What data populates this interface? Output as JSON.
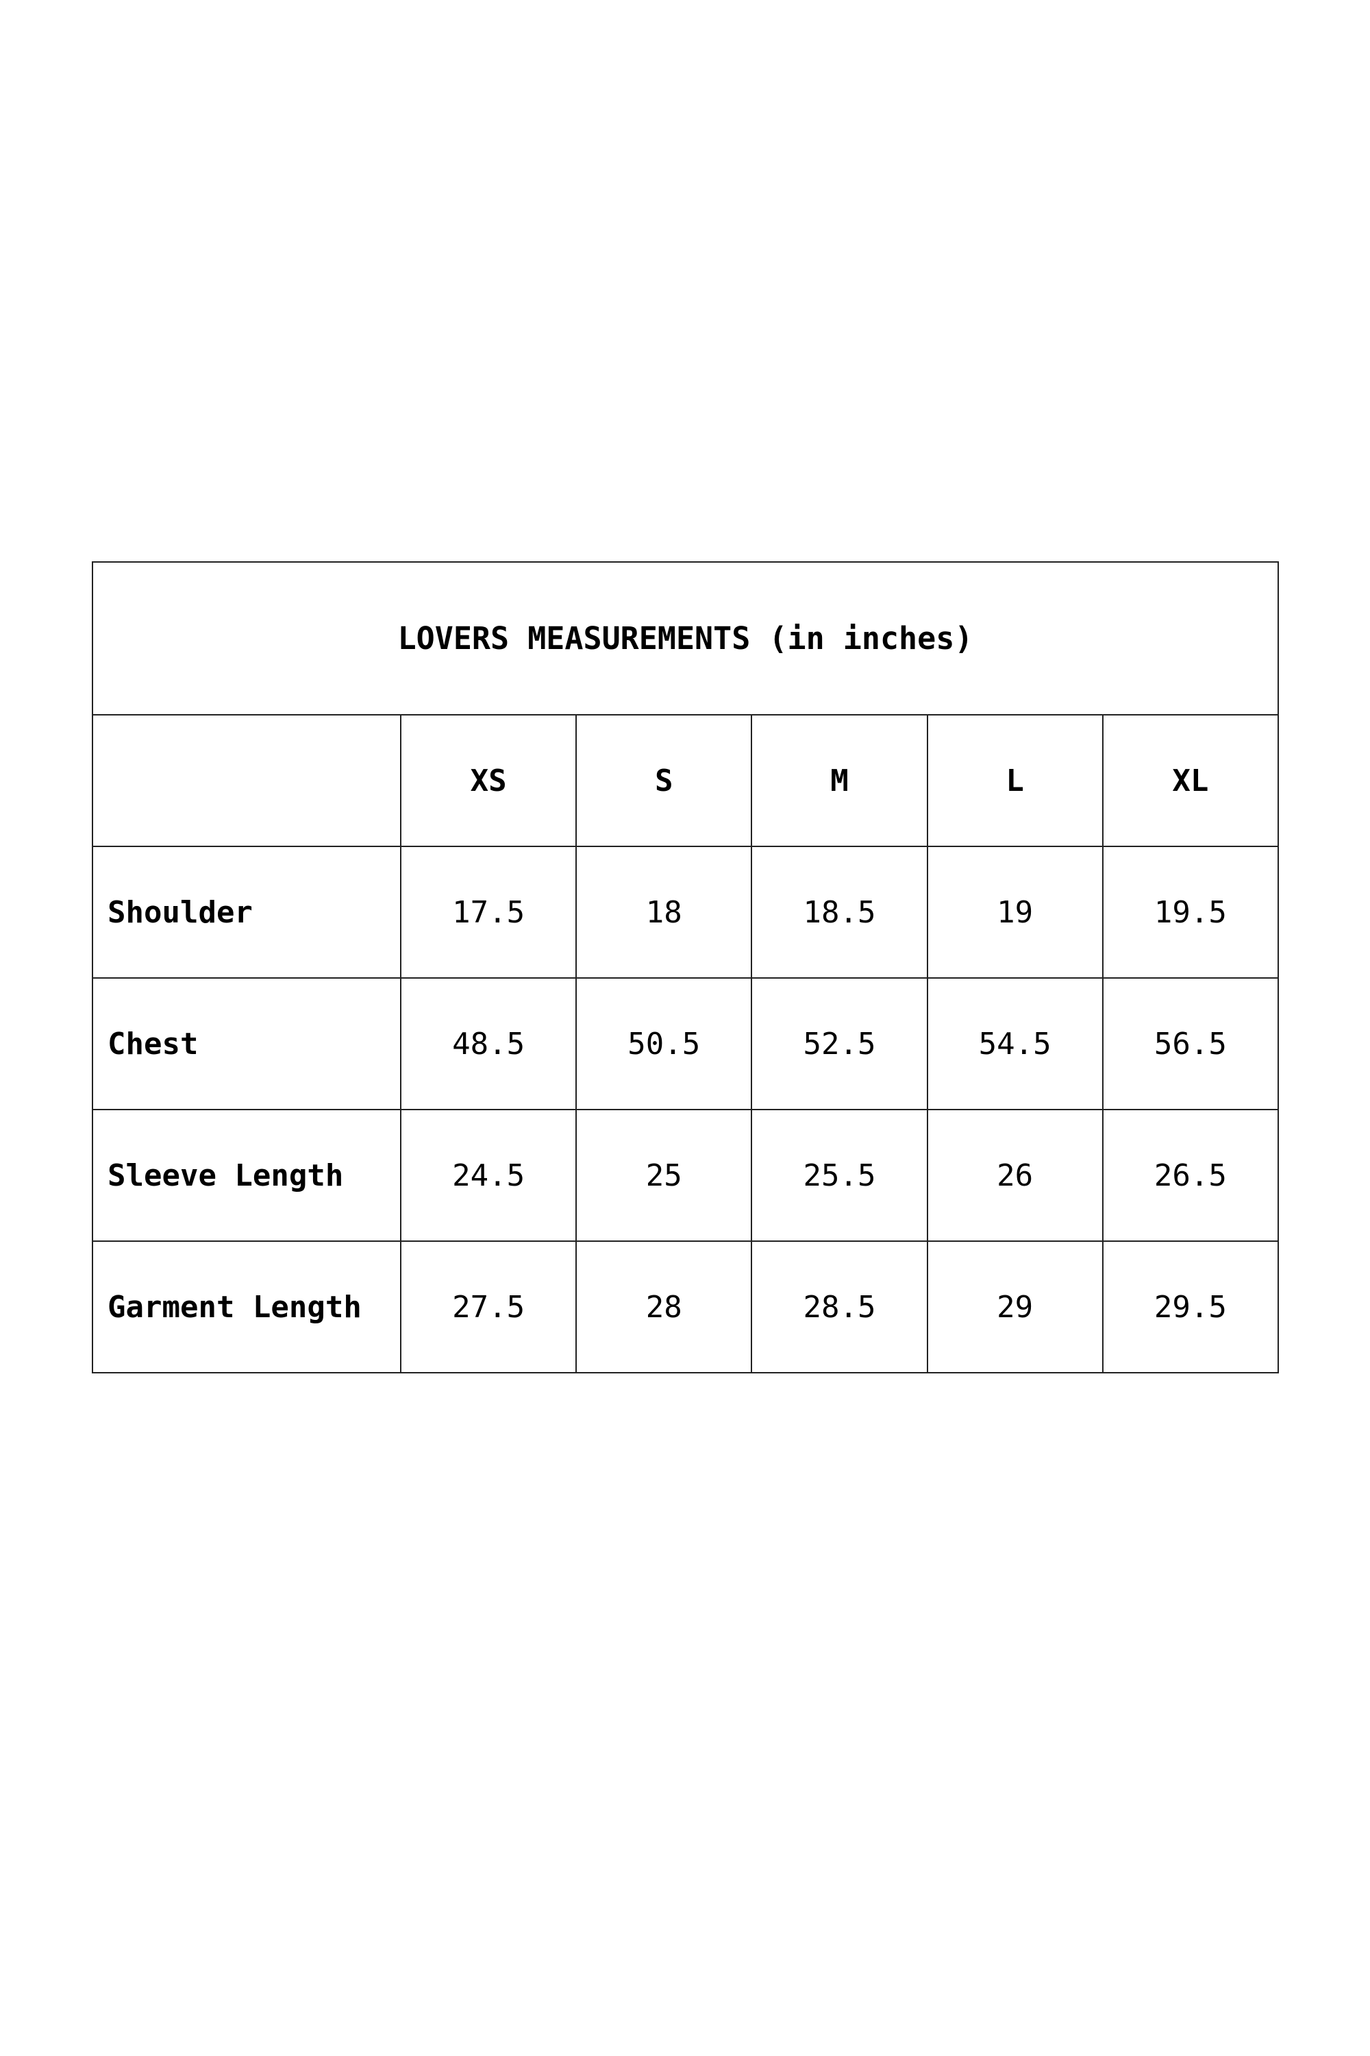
{
  "title": "LOVERS MEASUREMENTS (in inches)",
  "sizes": [
    "XS",
    "S",
    "M",
    "L",
    "XL"
  ],
  "rows": [
    {
      "label": "Shoulder",
      "values": [
        "17.5",
        "18",
        "18.5",
        "19",
        "19.5"
      ]
    },
    {
      "label": "Chest",
      "values": [
        "48.5",
        "50.5",
        "52.5",
        "54.5",
        "56.5"
      ]
    },
    {
      "label": "Sleeve Length",
      "values": [
        "24.5",
        "25",
        "25.5",
        "26",
        "26.5"
      ]
    },
    {
      "label": "Garment Length",
      "values": [
        "27.5",
        "28",
        "28.5",
        "29",
        "29.5"
      ]
    }
  ]
}
